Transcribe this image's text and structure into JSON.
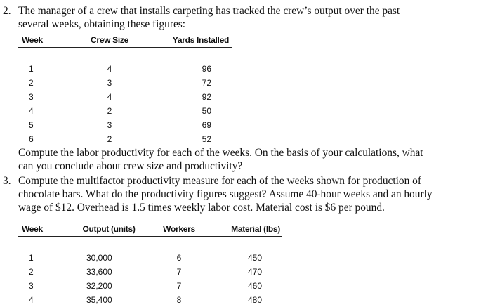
{
  "problem2": {
    "number": "2.",
    "intro": "The manager of a crew that installs carpeting has tracked the crew’s output over the past several weeks, obtaining these figures:",
    "table": {
      "headers": [
        "Week",
        "Crew Size",
        "Yards Installed"
      ],
      "rows": [
        [
          "1",
          "4",
          "96"
        ],
        [
          "2",
          "3",
          "72"
        ],
        [
          "3",
          "4",
          "92"
        ],
        [
          "4",
          "2",
          "50"
        ],
        [
          "5",
          "3",
          "69"
        ],
        [
          "6",
          "2",
          "52"
        ]
      ]
    },
    "question": "Compute the labor productivity for each of the weeks. On the basis of your calculations, what can you conclude about crew size and productivity?"
  },
  "problem3": {
    "number": "3.",
    "text": "Compute the multifactor productivity measure for each of the weeks shown for production of chocolate bars. What do the productivity figures suggest? Assume 40-hour weeks and an hourly wage of $12. Overhead is 1.5 times weekly labor cost. Material cost is $6 per pound.",
    "table": {
      "headers": [
        "Week",
        "Output (units)",
        "Workers",
        "Material (lbs)"
      ],
      "rows": [
        [
          "1",
          "30,000",
          "6",
          "450"
        ],
        [
          "2",
          "33,600",
          "7",
          "470"
        ],
        [
          "3",
          "32,200",
          "7",
          "460"
        ],
        [
          "4",
          "35,400",
          "8",
          "480"
        ]
      ]
    }
  }
}
